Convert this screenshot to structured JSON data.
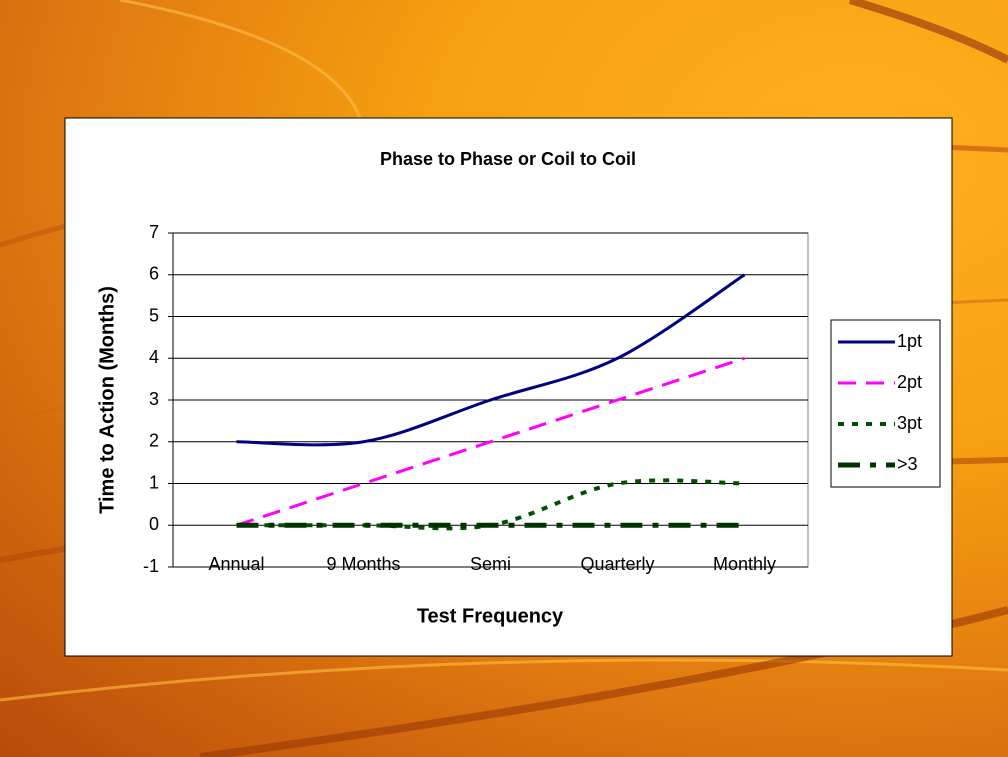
{
  "chart_data": {
    "type": "line",
    "title": "Phase to Phase or Coil to Coil",
    "x_label": "Test Frequency",
    "y_label": "Time to Action (Months)",
    "categories": [
      "Annual",
      "9 Months",
      "Semi",
      "Quarterly",
      "Monthly"
    ],
    "series": [
      {
        "name": "1pt",
        "color": "#000080",
        "dash": "solid",
        "values": [
          2,
          2,
          3,
          4,
          6
        ]
      },
      {
        "name": "2pt",
        "color": "#ff00ff",
        "dash": "dashed",
        "values": [
          0,
          1,
          2,
          3,
          4
        ]
      },
      {
        "name": "3pt",
        "color": "#005000",
        "dash": "dotted",
        "values": [
          0,
          0,
          0,
          1,
          1
        ]
      },
      {
        "name": ">3",
        "color": "#003300",
        "dash": "dash-dot",
        "values": [
          0,
          0,
          0,
          0,
          0
        ]
      }
    ],
    "ylim": [
      -1,
      7
    ],
    "yticks": [
      -1,
      0,
      1,
      2,
      3,
      4,
      5,
      6,
      7
    ],
    "grid": true,
    "smooth": true,
    "legend": "right"
  }
}
